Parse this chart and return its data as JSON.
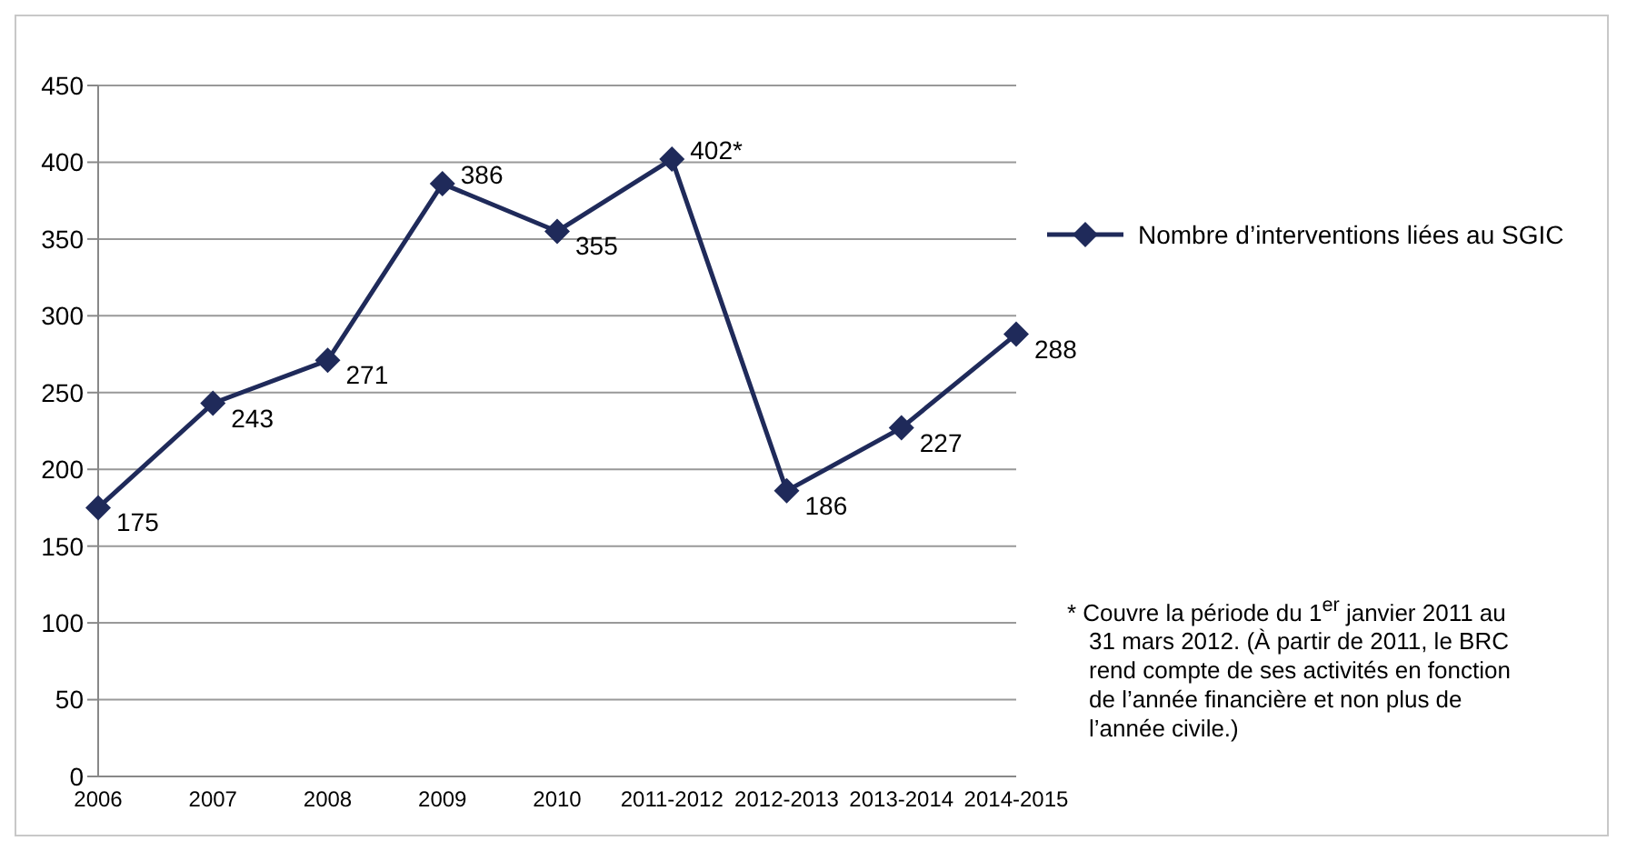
{
  "chart_data": {
    "type": "line",
    "categories": [
      "2006",
      "2007",
      "2008",
      "2009",
      "2010",
      "2011-2012",
      "2012-2013",
      "2013-2014",
      "2014-2015"
    ],
    "series": [
      {
        "name": "Nombre d’interventions liées au SGIC",
        "color": "#1f2a5a",
        "values": [
          175,
          243,
          271,
          386,
          355,
          402,
          186,
          227,
          288
        ],
        "value_labels": [
          "175",
          "243",
          "271",
          "386",
          "355",
          "402*",
          "186",
          "227",
          "288"
        ]
      }
    ],
    "ylim": [
      0,
      450
    ],
    "yticks": [
      0,
      50,
      100,
      150,
      200,
      250,
      300,
      350,
      400,
      450
    ],
    "grid": "y",
    "legend": "right",
    "marker": "diamond",
    "line_style": "solid",
    "annotations": [
      "* Couvre la période du 1$^{er}$ janvier 2011 au 31 mars 2012. (À partir de 2011, le BRC rend compte de ses activités en fonction de l’année financière et non plus de l’année civile.)"
    ]
  }
}
